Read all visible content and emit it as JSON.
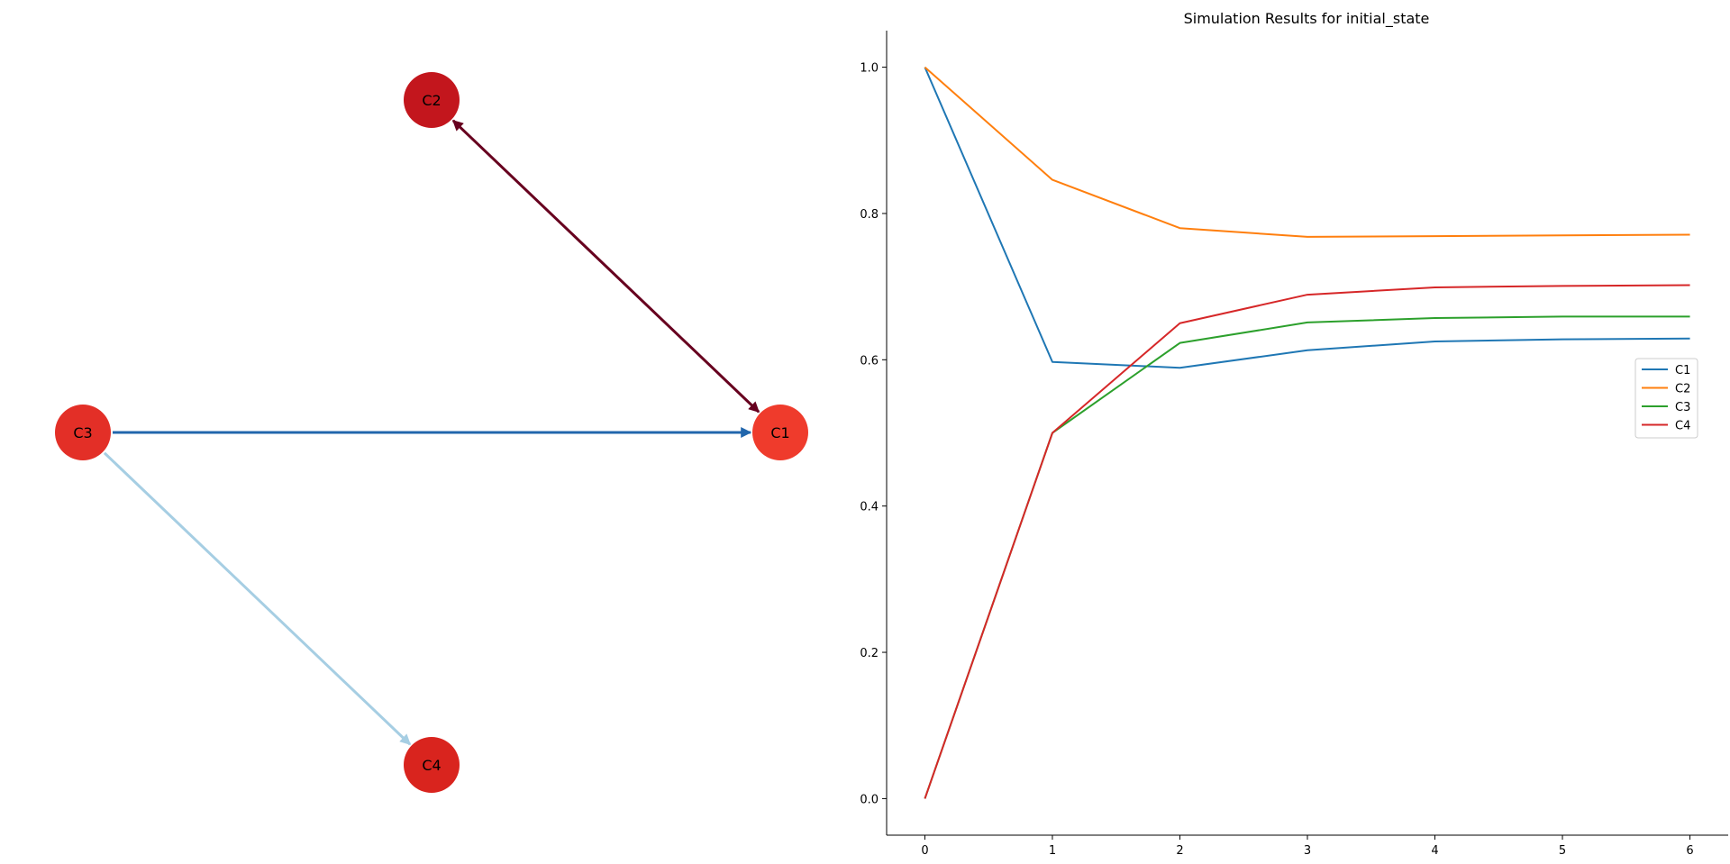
{
  "graph": {
    "nodes": [
      {
        "id": "C1",
        "label": "C1",
        "color": "#ef3b2c"
      },
      {
        "id": "C2",
        "label": "C2",
        "color": "#c3161d"
      },
      {
        "id": "C3",
        "label": "C3",
        "color": "#e32f27"
      },
      {
        "id": "C4",
        "label": "C4",
        "color": "#d9241e"
      }
    ],
    "edges": [
      {
        "from": "C1",
        "to": "C2",
        "color": "#67001f",
        "arrows": "both"
      },
      {
        "from": "C3",
        "to": "C1",
        "color": "#2166ac",
        "arrows": "end"
      },
      {
        "from": "C3",
        "to": "C4",
        "color": "#a6cee3",
        "arrows": "end"
      }
    ]
  },
  "chart_data": {
    "type": "line",
    "title": "Simulation Results for initial_state",
    "xlabel": "",
    "ylabel": "",
    "x": [
      0,
      1,
      2,
      3,
      4,
      5,
      6
    ],
    "xlim": [
      -0.3,
      6.3
    ],
    "ylim": [
      -0.05,
      1.05
    ],
    "xticks": [
      0,
      1,
      2,
      3,
      4,
      5,
      6
    ],
    "yticks": [
      0.0,
      0.2,
      0.4,
      0.6,
      0.8,
      1.0
    ],
    "xtick_labels": [
      "0",
      "1",
      "2",
      "3",
      "4",
      "5",
      "6"
    ],
    "ytick_labels": [
      "0.0",
      "0.2",
      "0.4",
      "0.6",
      "0.8",
      "1.0"
    ],
    "grid": false,
    "legend_position": "right",
    "series": [
      {
        "name": "C1",
        "color": "#1f77b4",
        "values": [
          1.0,
          0.597,
          0.589,
          0.613,
          0.625,
          0.628,
          0.629
        ]
      },
      {
        "name": "C2",
        "color": "#ff7f0e",
        "values": [
          1.0,
          0.846,
          0.78,
          0.768,
          0.769,
          0.77,
          0.771
        ]
      },
      {
        "name": "C3",
        "color": "#2ca02c",
        "values": [
          0.0,
          0.5,
          0.623,
          0.651,
          0.657,
          0.659,
          0.659
        ]
      },
      {
        "name": "C4",
        "color": "#d62728",
        "values": [
          0.0,
          0.5,
          0.65,
          0.689,
          0.699,
          0.701,
          0.702
        ]
      }
    ]
  }
}
